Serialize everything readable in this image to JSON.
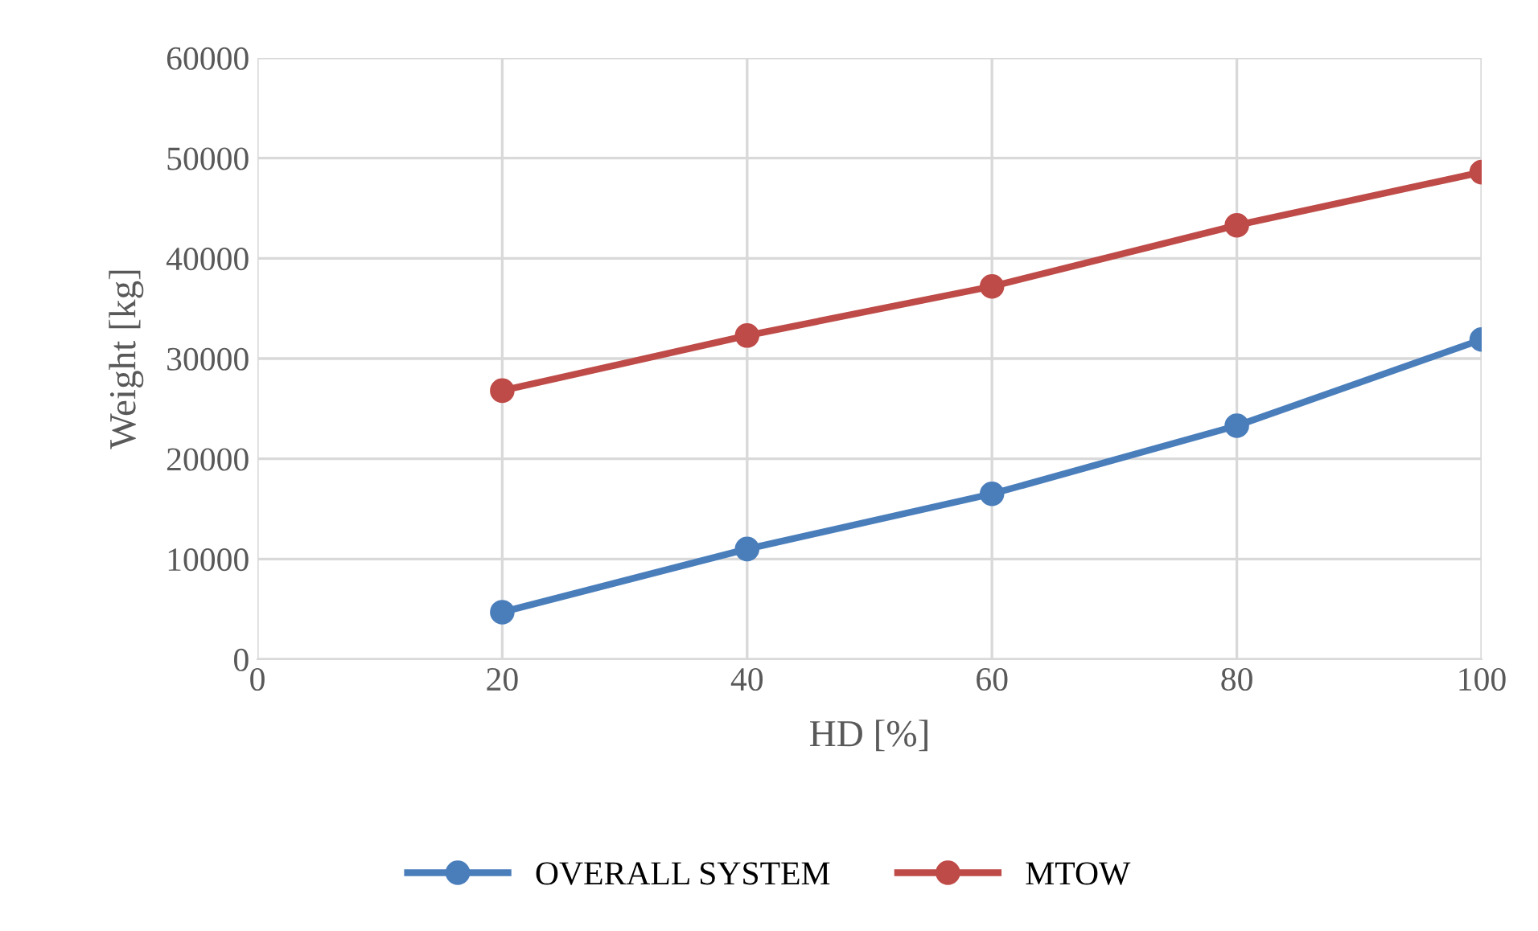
{
  "chart_data": {
    "type": "line",
    "xlabel": "HD [%]",
    "ylabel": "Weight [kg]",
    "x": [
      20,
      40,
      60,
      80,
      100
    ],
    "series": [
      {
        "name": "OVERALL SYSTEM",
        "color": "#4a7ebb",
        "values": [
          4700,
          11000,
          16500,
          23300,
          31900
        ]
      },
      {
        "name": "MTOW",
        "color": "#be4b48",
        "values": [
          26800,
          32300,
          37200,
          43300,
          48600
        ]
      }
    ],
    "xlim": [
      0,
      100
    ],
    "xticks": [
      0,
      20,
      40,
      60,
      80,
      100
    ],
    "ylim": [
      0,
      60000
    ],
    "yticks": [
      0,
      10000,
      20000,
      30000,
      40000,
      50000,
      60000
    ],
    "grid": true,
    "legend": "bottom",
    "marker": "circle",
    "line_style": "solid"
  }
}
